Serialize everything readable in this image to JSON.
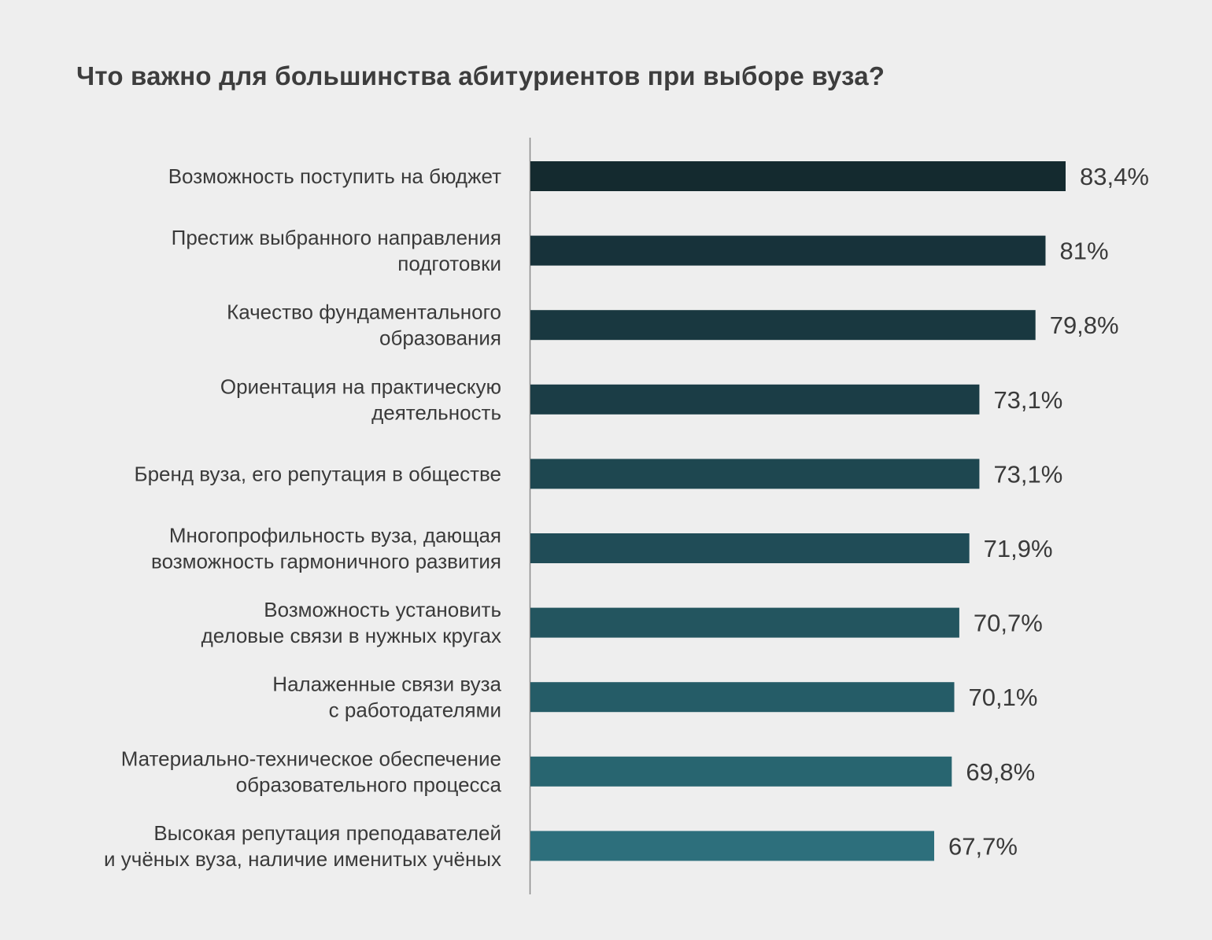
{
  "chart_data": {
    "type": "bar",
    "orientation": "horizontal",
    "title": "Что важно для большинства абитуриентов при выборе вуза?",
    "categories": [
      [
        "Возможность поступить на бюджет"
      ],
      [
        "Престиж выбранного направления",
        "подготовки"
      ],
      [
        "Качество фундаментального",
        "образования"
      ],
      [
        "Ориентация на практическую",
        "деятельность"
      ],
      [
        "Бренд вуза, его репутация в обществе"
      ],
      [
        "Многопрофильность вуза, дающая",
        "возможность гармоничного развития"
      ],
      [
        "Возможность установить",
        "деловые связи в нужных кругах"
      ],
      [
        "Налаженные связи вуза",
        "с работодателями"
      ],
      [
        "Материально-техническое обеспечение",
        "образовательного процесса"
      ],
      [
        "Высокая репутация преподавателей",
        "и учёных вуза, наличие именитых учёных"
      ]
    ],
    "values": [
      83.4,
      81,
      79.8,
      73.1,
      73.1,
      71.9,
      70.7,
      70.1,
      69.8,
      67.7
    ],
    "value_labels": [
      "83,4%",
      "81%",
      "79,8%",
      "73,1%",
      "73,1%",
      "71,9%",
      "70,7%",
      "70,1%",
      "69,8%",
      "67,7%"
    ],
    "bar_colors": [
      "#142a2f",
      "#17323a",
      "#193840",
      "#1b3d46",
      "#1e4750",
      "#204c57",
      "#23555f",
      "#255c67",
      "#286570",
      "#2d6f7c"
    ],
    "grid": false,
    "legend": "none"
  }
}
